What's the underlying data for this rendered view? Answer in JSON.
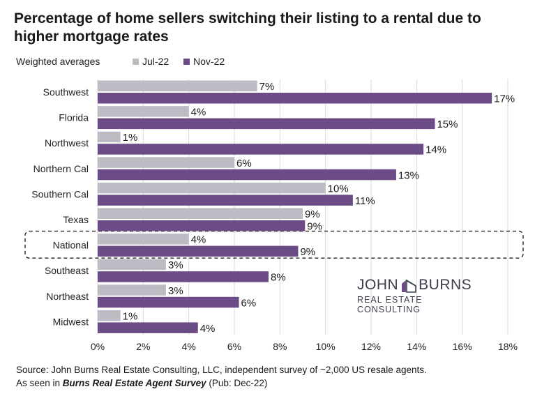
{
  "title": "Percentage of home sellers switching their listing to a rental due to higher mortgage rates",
  "colors": {
    "jul": "#bdbcc4",
    "nov": "#6b4c86",
    "grid": "#d9d9d9",
    "highlight": "#222222"
  },
  "chart_data": {
    "type": "bar",
    "orientation": "horizontal",
    "subtitle": "Weighted averages",
    "categories": [
      "Southwest",
      "Florida",
      "Northwest",
      "Northern Cal",
      "Southern Cal",
      "Texas",
      "National",
      "Southeast",
      "Northeast",
      "Midwest"
    ],
    "series": [
      {
        "name": "Jul-22",
        "values": [
          7,
          4,
          1,
          6,
          10,
          9,
          4,
          3,
          3,
          1
        ],
        "labels": [
          "7%",
          "4%",
          "1%",
          "6%",
          "10%",
          "9%",
          "4%",
          "3%",
          "3%",
          "1%"
        ]
      },
      {
        "name": "Nov-22",
        "values": [
          17.3,
          14.8,
          14.3,
          13.1,
          11.2,
          9.1,
          8.8,
          7.5,
          6.2,
          4.4
        ],
        "labels": [
          "17%",
          "15%",
          "14%",
          "13%",
          "11%",
          "9%",
          "9%",
          "8%",
          "6%",
          "4%"
        ]
      }
    ],
    "xlim": [
      0,
      18
    ],
    "xticks": [
      "0%",
      "2%",
      "4%",
      "6%",
      "8%",
      "10%",
      "12%",
      "14%",
      "16%",
      "18%"
    ],
    "highlighted_category": "National",
    "grid": true,
    "legend_placement": "top"
  },
  "logo": {
    "line1a": "JOHN",
    "line1b": "BURNS",
    "line2": "REAL ESTATE CONSULTING"
  },
  "source": {
    "line1": "Source: John Burns Real Estate Consulting, LLC, independent survey of ~2,000 US resale agents.",
    "line2_prefix": "As seen in ",
    "line2_bold": "Burns Real Estate Agent Survey",
    "line2_suffix": " (Pub: Dec-22)"
  }
}
